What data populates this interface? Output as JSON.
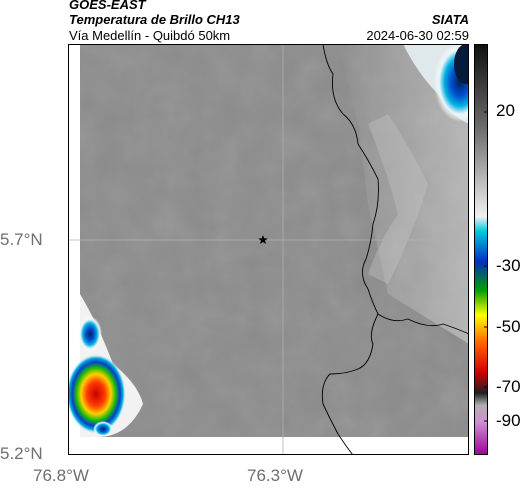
{
  "header": {
    "source": "GOES-EAST",
    "product": "Temperatura de Brillo CH13",
    "org": "SIATA",
    "route": "Vía Medellín - Quibdó 50km",
    "datetime": "2024-06-30 02:59"
  },
  "axes": {
    "lat_labels": [
      "5.7°N",
      "5.2°N"
    ],
    "lon_labels": [
      "76.8°W",
      "76.3°W"
    ]
  },
  "colorbar": {
    "ticks": [
      "20",
      "-30",
      "-50",
      "-70",
      "-90"
    ]
  },
  "marker": {
    "icon": "star-icon"
  },
  "colors": {
    "background_gray": "#8a8a8a",
    "border_line": "#000000",
    "grid_line": "#b0b0b0",
    "label_gray": "#6f6f6f"
  }
}
